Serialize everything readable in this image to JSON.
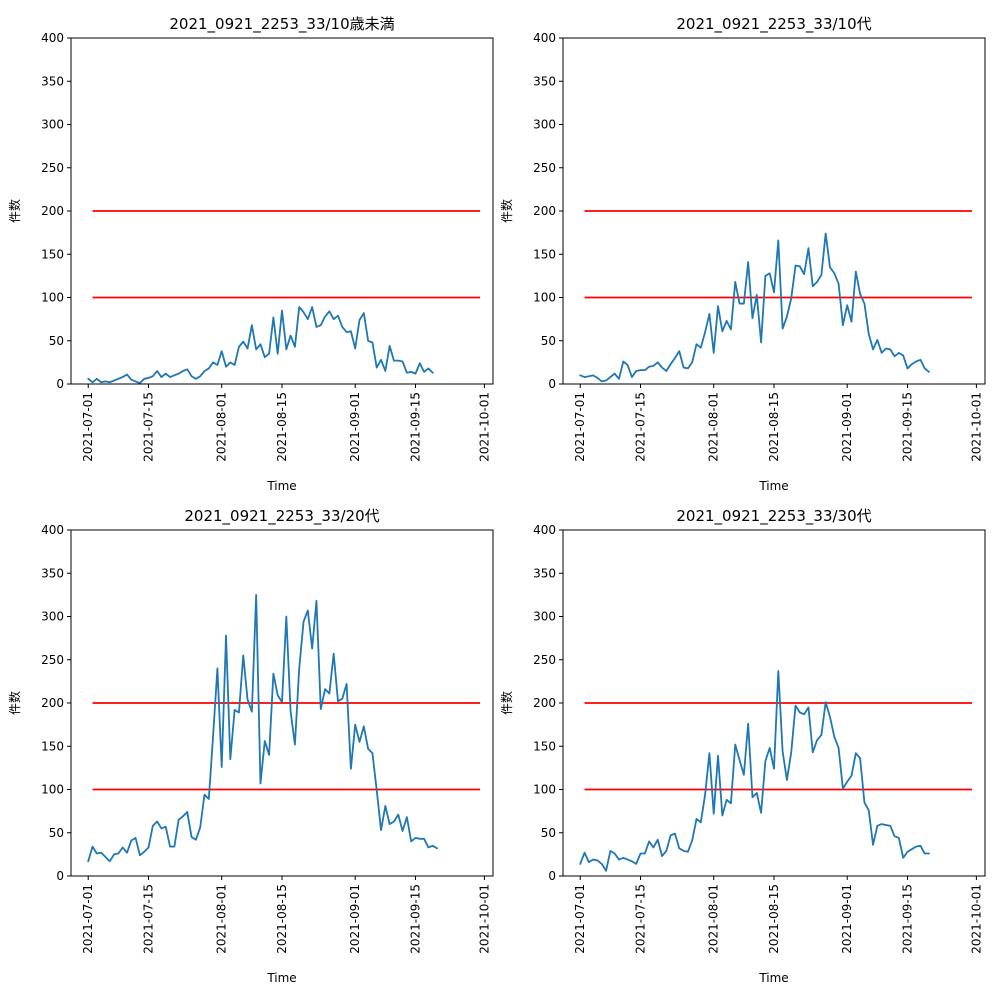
{
  "figure": {
    "background": "#ffffff"
  },
  "chart_data": [
    {
      "type": "line",
      "title": "2021_0921_2253_33/10歳未満",
      "xlabel": "Time",
      "ylabel": "件数",
      "xlim": [
        "2021-06-27",
        "2021-10-03"
      ],
      "ylim": [
        0,
        400
      ],
      "yticks": [
        0,
        50,
        100,
        150,
        200,
        250,
        300,
        350,
        400
      ],
      "xticks": [
        "2021-07-01",
        "2021-07-15",
        "2021-08-01",
        "2021-08-15",
        "2021-09-01",
        "2021-09-15",
        "2021-10-01"
      ],
      "grid": false,
      "series": [
        {
          "color": "#1f77b4",
          "x_start": "2021-07-01",
          "values": [
            6,
            2,
            6,
            2,
            3,
            2,
            4,
            6,
            8,
            11,
            5,
            3,
            1,
            6,
            7,
            9,
            15,
            8,
            12,
            8,
            10,
            12,
            15,
            17,
            9,
            6,
            9,
            15,
            18,
            25,
            22,
            38,
            20,
            25,
            22,
            43,
            49,
            41,
            68,
            40,
            46,
            31,
            35,
            77,
            35,
            85,
            40,
            56,
            43,
            89,
            83,
            75,
            89,
            66,
            68,
            78,
            84,
            75,
            79,
            66,
            60,
            61,
            41,
            74,
            82,
            50,
            48,
            19,
            28,
            15,
            44,
            27,
            27,
            26,
            13,
            14,
            12,
            24,
            14,
            18,
            13
          ]
        }
      ],
      "hlines": [
        {
          "y": 100,
          "color": "#ff0000",
          "from": "2021-07-02",
          "to": "2021-09-30"
        },
        {
          "y": 200,
          "color": "#ff0000",
          "from": "2021-07-02",
          "to": "2021-09-30"
        }
      ]
    },
    {
      "type": "line",
      "title": "2021_0921_2253_33/10代",
      "xlabel": "Time",
      "ylabel": "件数",
      "xlim": [
        "2021-06-27",
        "2021-10-03"
      ],
      "ylim": [
        0,
        400
      ],
      "yticks": [
        0,
        50,
        100,
        150,
        200,
        250,
        300,
        350,
        400
      ],
      "xticks": [
        "2021-07-01",
        "2021-07-15",
        "2021-08-01",
        "2021-08-15",
        "2021-09-01",
        "2021-09-15",
        "2021-10-01"
      ],
      "grid": false,
      "series": [
        {
          "color": "#1f77b4",
          "x_start": "2021-07-01",
          "values": [
            10,
            8,
            9,
            10,
            7,
            3,
            4,
            8,
            12,
            6,
            26,
            22,
            8,
            15,
            16,
            16,
            20,
            21,
            25,
            19,
            15,
            23,
            30,
            38,
            19,
            18,
            25,
            46,
            42,
            60,
            81,
            36,
            90,
            61,
            73,
            63,
            118,
            93,
            93,
            141,
            76,
            103,
            48,
            125,
            128,
            106,
            166,
            64,
            78,
            99,
            137,
            136,
            127,
            157,
            113,
            118,
            126,
            174,
            135,
            128,
            116,
            68,
            91,
            72,
            130,
            104,
            93,
            58,
            40,
            51,
            36,
            41,
            40,
            32,
            36,
            33,
            18,
            23,
            26,
            28,
            18,
            14
          ]
        }
      ],
      "hlines": [
        {
          "y": 100,
          "color": "#ff0000",
          "from": "2021-07-02",
          "to": "2021-09-30"
        },
        {
          "y": 200,
          "color": "#ff0000",
          "from": "2021-07-02",
          "to": "2021-09-30"
        }
      ]
    },
    {
      "type": "line",
      "title": "2021_0921_2253_33/20代",
      "xlabel": "Time",
      "ylabel": "件数",
      "xlim": [
        "2021-06-27",
        "2021-10-03"
      ],
      "ylim": [
        0,
        400
      ],
      "yticks": [
        0,
        50,
        100,
        150,
        200,
        250,
        300,
        350,
        400
      ],
      "xticks": [
        "2021-07-01",
        "2021-07-15",
        "2021-08-01",
        "2021-08-15",
        "2021-09-01",
        "2021-09-15",
        "2021-10-01"
      ],
      "grid": false,
      "series": [
        {
          "color": "#1f77b4",
          "x_start": "2021-07-01",
          "values": [
            17,
            34,
            26,
            27,
            22,
            17,
            25,
            26,
            33,
            27,
            41,
            44,
            24,
            28,
            33,
            58,
            63,
            55,
            57,
            34,
            34,
            65,
            69,
            74,
            45,
            42,
            56,
            94,
            89,
            162,
            240,
            126,
            278,
            135,
            192,
            189,
            255,
            204,
            190,
            325,
            107,
            156,
            140,
            234,
            209,
            201,
            300,
            190,
            152,
            240,
            294,
            307,
            263,
            318,
            193,
            216,
            211,
            257,
            202,
            205,
            222,
            124,
            175,
            155,
            173,
            147,
            142,
            99,
            53,
            81,
            60,
            63,
            71,
            52,
            68,
            40,
            44,
            43,
            43,
            33,
            35,
            32
          ]
        }
      ],
      "hlines": [
        {
          "y": 100,
          "color": "#ff0000",
          "from": "2021-07-02",
          "to": "2021-09-30"
        },
        {
          "y": 200,
          "color": "#ff0000",
          "from": "2021-07-02",
          "to": "2021-09-30"
        }
      ]
    },
    {
      "type": "line",
      "title": "2021_0921_2253_33/30代",
      "xlabel": "Time",
      "ylabel": "件数",
      "xlim": [
        "2021-06-27",
        "2021-10-03"
      ],
      "ylim": [
        0,
        400
      ],
      "yticks": [
        0,
        50,
        100,
        150,
        200,
        250,
        300,
        350,
        400
      ],
      "xticks": [
        "2021-07-01",
        "2021-07-15",
        "2021-08-01",
        "2021-08-15",
        "2021-09-01",
        "2021-09-15",
        "2021-10-01"
      ],
      "grid": false,
      "series": [
        {
          "color": "#1f77b4",
          "x_start": "2021-07-01",
          "values": [
            14,
            27,
            16,
            19,
            18,
            14,
            6,
            29,
            26,
            19,
            21,
            19,
            17,
            14,
            26,
            26,
            40,
            33,
            42,
            23,
            29,
            47,
            49,
            32,
            29,
            28,
            41,
            66,
            62,
            94,
            142,
            72,
            139,
            70,
            88,
            84,
            152,
            134,
            117,
            176,
            91,
            96,
            73,
            133,
            148,
            124,
            237,
            144,
            111,
            143,
            197,
            189,
            187,
            195,
            143,
            157,
            163,
            201,
            184,
            161,
            148,
            101,
            109,
            116,
            142,
            136,
            85,
            76,
            36,
            58,
            60,
            59,
            58,
            46,
            44,
            21,
            28,
            31,
            34,
            35,
            26,
            26
          ]
        }
      ],
      "hlines": [
        {
          "y": 100,
          "color": "#ff0000",
          "from": "2021-07-02",
          "to": "2021-09-30"
        },
        {
          "y": 200,
          "color": "#ff0000",
          "from": "2021-07-02",
          "to": "2021-09-30"
        }
      ]
    }
  ]
}
